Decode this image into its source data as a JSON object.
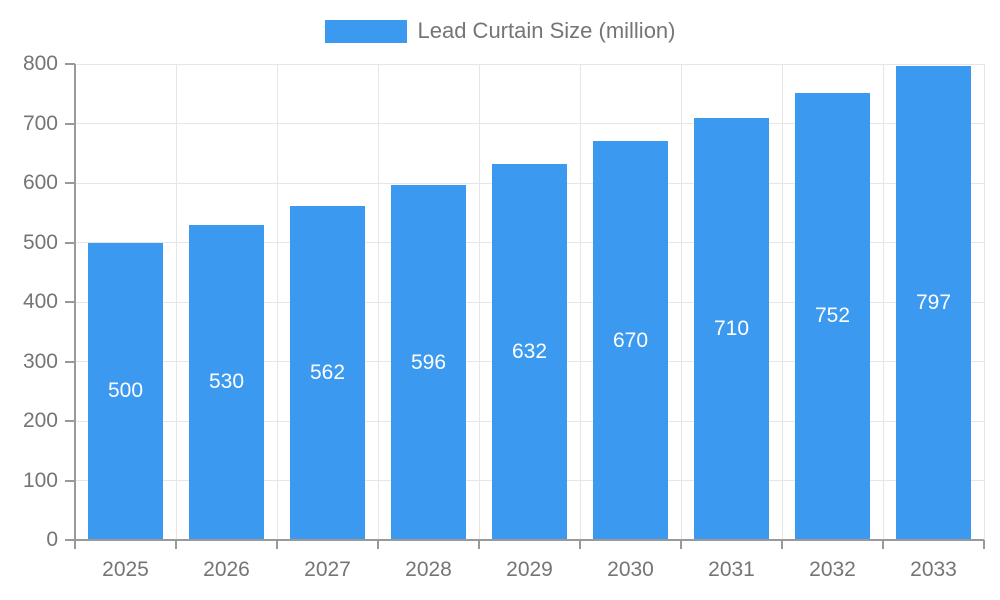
{
  "chart_data": {
    "type": "bar",
    "title": "Lead Curtain Size (million)",
    "categories": [
      "2025",
      "2026",
      "2027",
      "2028",
      "2029",
      "2030",
      "2031",
      "2032",
      "2033"
    ],
    "values": [
      500,
      530,
      562,
      596,
      632,
      670,
      710,
      752,
      797
    ],
    "xlabel": "",
    "ylabel": "",
    "ylim": [
      0,
      800
    ],
    "yticks": [
      0,
      100,
      200,
      300,
      400,
      500,
      600,
      700,
      800
    ],
    "grid": true,
    "legend_position": "top-center",
    "value_labels": "inside-center",
    "colors": {
      "bar": "#3B99F0",
      "bar_label": "#FFFFFF",
      "grid": "#E6E6E6",
      "axis": "#999999",
      "tick_label": "#757575",
      "legend_text": "#757575",
      "background": "#FFFFFF"
    }
  }
}
